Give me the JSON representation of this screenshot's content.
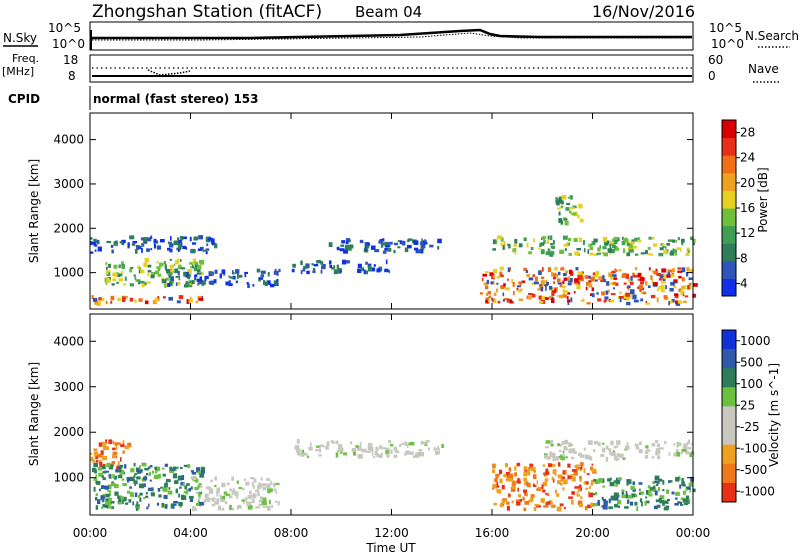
{
  "header": {
    "station": "Zhongshan Station (fitACF)",
    "beam": "Beam 04",
    "date": "16/Nov/2016"
  },
  "noise_panel": {
    "left_label": "N.Sky",
    "y_ticks": [
      "10^5",
      "10^0"
    ],
    "right_label": "N.Search",
    "right_ticks": [
      "10^5",
      "10^0"
    ]
  },
  "freq_panel": {
    "left_label_1": "Freq.",
    "left_label_2": "[MHz]",
    "y_ticks": [
      "18",
      "8"
    ],
    "right_label": "Nave",
    "right_ticks": [
      "60",
      "0"
    ]
  },
  "cpid": {
    "label": "CPID",
    "value": "normal (fast stereo) 153"
  },
  "chart_data": [
    {
      "type": "heatmap",
      "title": "",
      "xlabel": "",
      "ylabel": "Slant Range [km]",
      "ylim": [
        180,
        4600
      ],
      "y_ticks": [
        1000,
        2000,
        3000,
        4000
      ],
      "x_ticks": [
        "00:00",
        "04:00",
        "08:00",
        "12:00",
        "16:00",
        "20:00",
        "00:00"
      ],
      "colorbar": {
        "label": "Power [dB]",
        "ticks": [
          4,
          8,
          12,
          16,
          20,
          24,
          28
        ],
        "colors": [
          "#1030e8",
          "#2d54b8",
          "#2e7d5a",
          "#3f9f54",
          "#6fbf3a",
          "#e8d020",
          "#f0a020",
          "#f07018",
          "#e83018",
          "#d80000"
        ]
      },
      "echo_regions": [
        {
          "t": [
            0.0,
            5.0
          ],
          "range": [
            1450,
            1800
          ],
          "level": "low"
        },
        {
          "t": [
            0.0,
            5.0
          ],
          "range": [
            300,
            450
          ],
          "level": "high"
        },
        {
          "t": [
            0.5,
            4.5
          ],
          "range": [
            700,
            1300
          ],
          "level": "mid"
        },
        {
          "t": [
            3.0,
            7.5
          ],
          "range": [
            700,
            1050
          ],
          "level": "low"
        },
        {
          "t": [
            9.5,
            14.0
          ],
          "range": [
            1450,
            1750
          ],
          "level": "low"
        },
        {
          "t": [
            8.0,
            12.0
          ],
          "range": [
            1000,
            1250
          ],
          "level": "low"
        },
        {
          "t": [
            15.5,
            24.0
          ],
          "range": [
            300,
            1100
          ],
          "level": "high"
        },
        {
          "t": [
            16.0,
            24.0
          ],
          "range": [
            1400,
            1800
          ],
          "level": "mid"
        },
        {
          "t": [
            18.5,
            19.5
          ],
          "range": [
            2100,
            2700
          ],
          "level": "mid"
        }
      ]
    },
    {
      "type": "heatmap",
      "title": "",
      "xlabel": "Time UT",
      "ylabel": "Slant Range [km]",
      "ylim": [
        180,
        4600
      ],
      "y_ticks": [
        1000,
        2000,
        3000,
        4000
      ],
      "x_ticks": [
        "00:00",
        "04:00",
        "08:00",
        "12:00",
        "16:00",
        "20:00",
        "00:00"
      ],
      "colorbar": {
        "label": "Velocity [m s^-1]",
        "ticks": [
          1000,
          500,
          100,
          25,
          -25,
          -100,
          -500,
          -1000
        ],
        "colors": [
          "#1030d8",
          "#2e5aa8",
          "#2e7d5a",
          "#6cc040",
          "#c8c8c0",
          "#c8c8c0",
          "#f0a020",
          "#f07818",
          "#e83018"
        ]
      },
      "echo_regions": [
        {
          "t": [
            0.0,
            1.5
          ],
          "range": [
            1200,
            1800
          ],
          "level": "neg"
        },
        {
          "t": [
            0.0,
            4.5
          ],
          "range": [
            300,
            1300
          ],
          "level": "pos"
        },
        {
          "t": [
            4.0,
            7.5
          ],
          "range": [
            300,
            1000
          ],
          "level": "neutral"
        },
        {
          "t": [
            8.0,
            14.0
          ],
          "range": [
            1450,
            1800
          ],
          "level": "neutral"
        },
        {
          "t": [
            16.0,
            20.0
          ],
          "range": [
            300,
            1300
          ],
          "level": "neg"
        },
        {
          "t": [
            18.0,
            24.0
          ],
          "range": [
            1400,
            1800
          ],
          "level": "neutral"
        },
        {
          "t": [
            20.0,
            24.0
          ],
          "range": [
            300,
            1000
          ],
          "level": "pos"
        }
      ]
    }
  ]
}
